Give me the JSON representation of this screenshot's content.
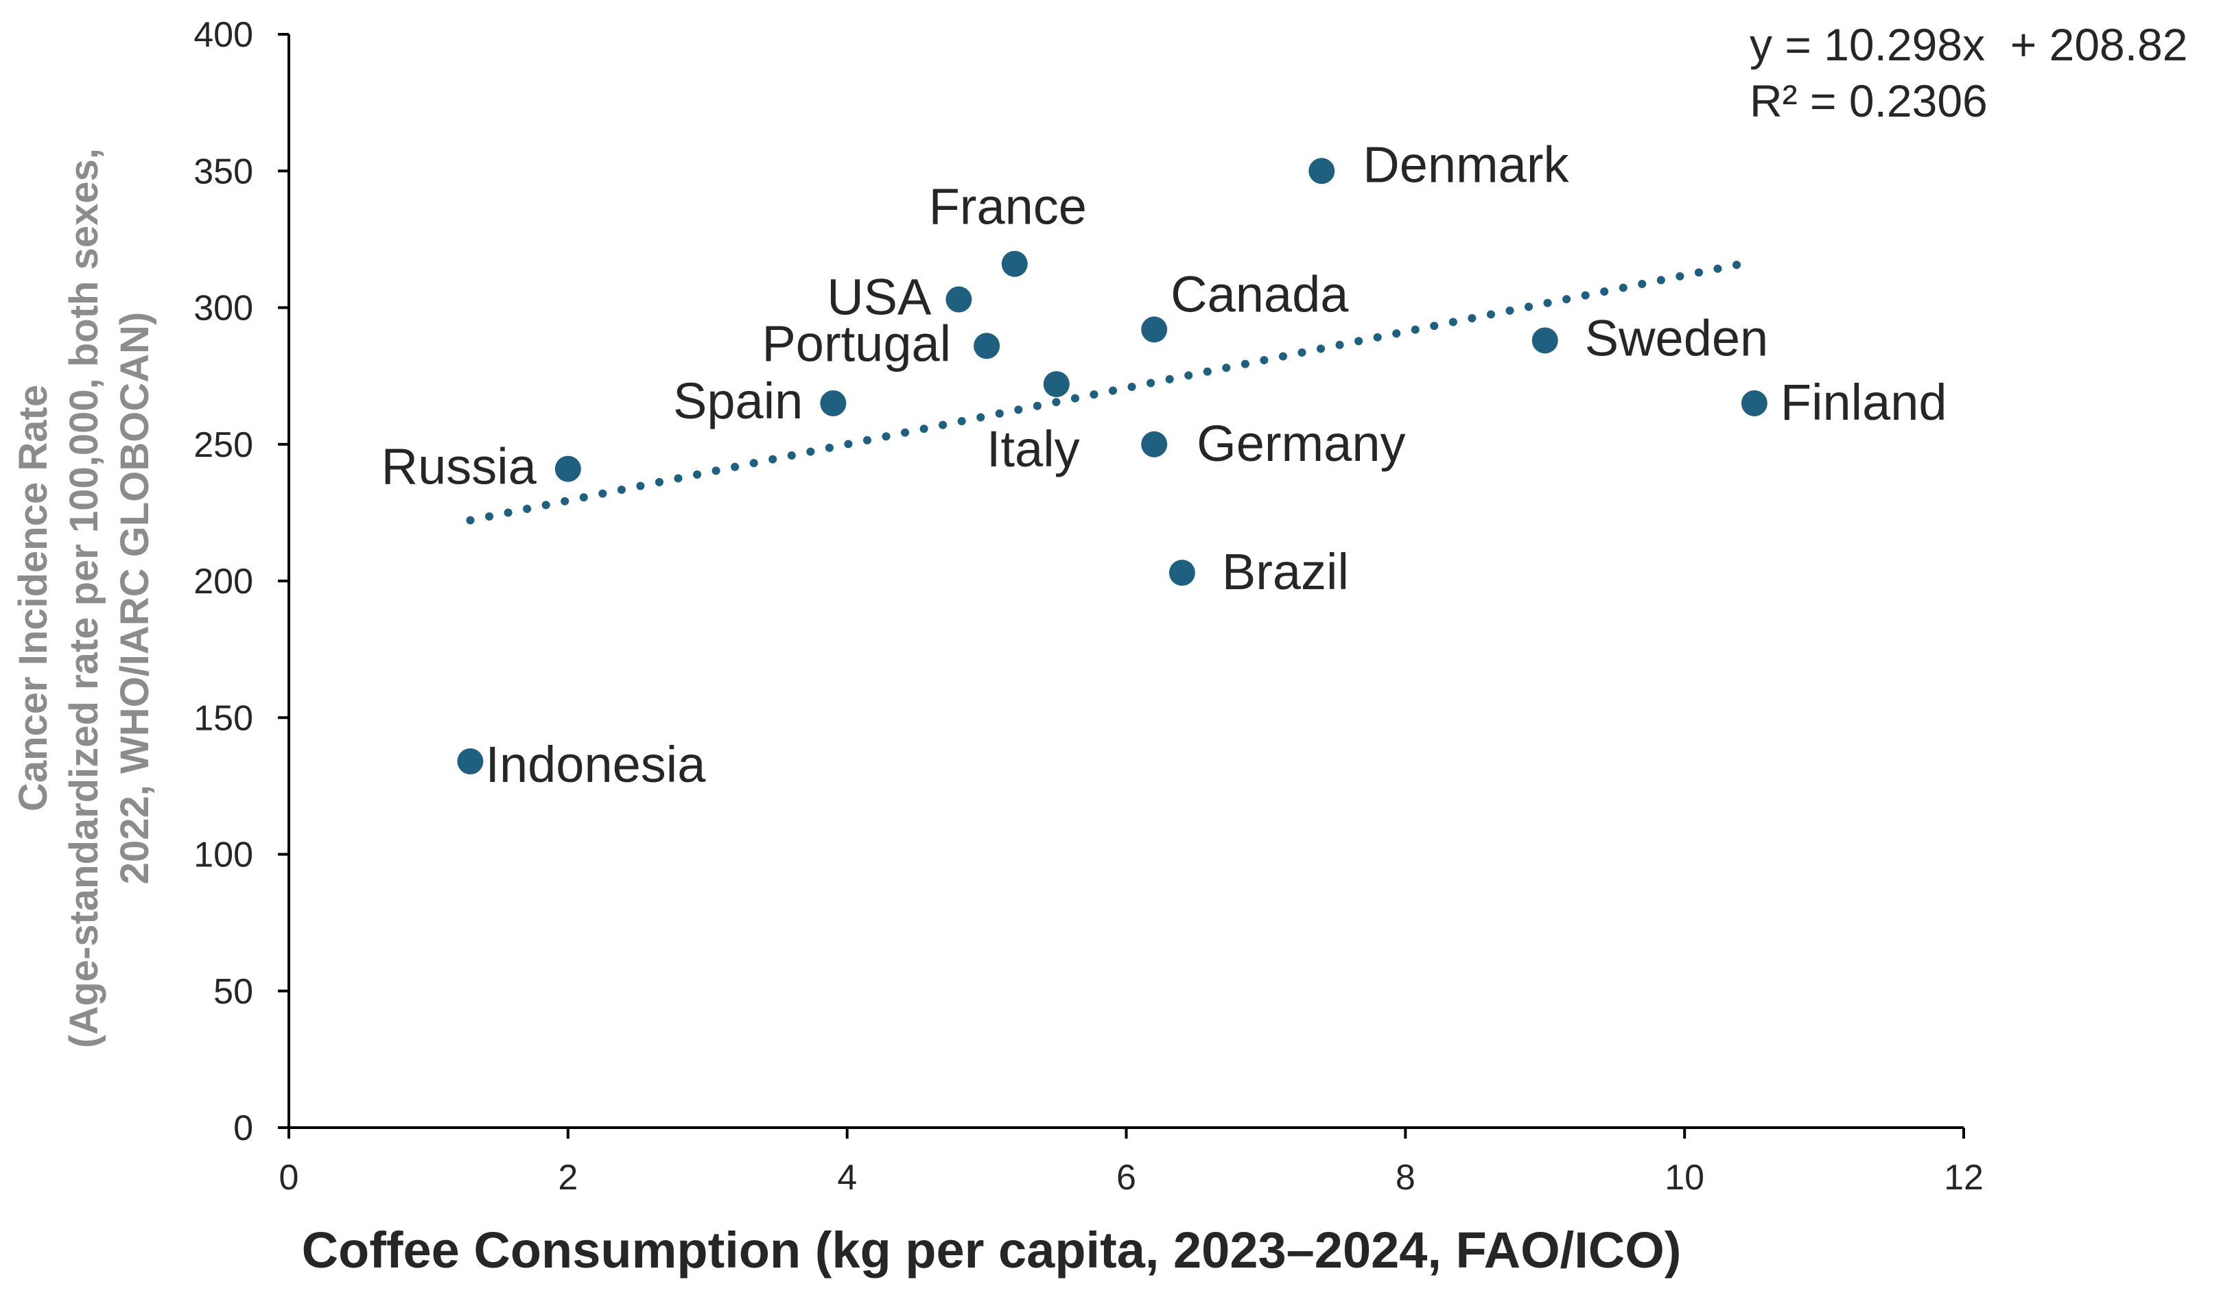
{
  "chart_data": {
    "type": "scatter",
    "xlabel": "Coffee Consumption (kg per capita, 2023–2024, FAO/ICO)",
    "ylabel_lines": [
      "Cancer Incidence Rate",
      "(Age-standardized rate per 100,000, both sexes,",
      "2022, WHO/IARC GLOBOCAN)"
    ],
    "xlim": [
      0,
      12
    ],
    "ylim": [
      0,
      400
    ],
    "xticks": [
      0,
      2,
      4,
      6,
      8,
      10,
      12
    ],
    "yticks": [
      0,
      50,
      100,
      150,
      200,
      250,
      300,
      350,
      400
    ],
    "grid": false,
    "marker_color": "#1f5f7f",
    "trendline": {
      "type": "linear",
      "slope": 10.298,
      "intercept": 208.82,
      "x_range": [
        1.3,
        10.5
      ],
      "style": "dotted",
      "equation_text": "y = 10.298x  + 208.82",
      "r2_text": "R² = 0.2306"
    },
    "points": [
      {
        "label": "Indonesia",
        "x": 1.3,
        "y": 134
      },
      {
        "label": "Russia",
        "x": 2.0,
        "y": 241
      },
      {
        "label": "Spain",
        "x": 3.9,
        "y": 265
      },
      {
        "label": "USA",
        "x": 4.8,
        "y": 303
      },
      {
        "label": "Portugal",
        "x": 5.0,
        "y": 286
      },
      {
        "label": "France",
        "x": 5.2,
        "y": 316
      },
      {
        "label": "Italy",
        "x": 5.5,
        "y": 272
      },
      {
        "label": "Canada",
        "x": 6.2,
        "y": 292
      },
      {
        "label": "Germany",
        "x": 6.2,
        "y": 250
      },
      {
        "label": "Brazil",
        "x": 6.4,
        "y": 203
      },
      {
        "label": "Denmark",
        "x": 7.4,
        "y": 350
      },
      {
        "label": "Sweden",
        "x": 9.0,
        "y": 288
      },
      {
        "label": "Finland",
        "x": 10.5,
        "y": 265
      }
    ]
  }
}
